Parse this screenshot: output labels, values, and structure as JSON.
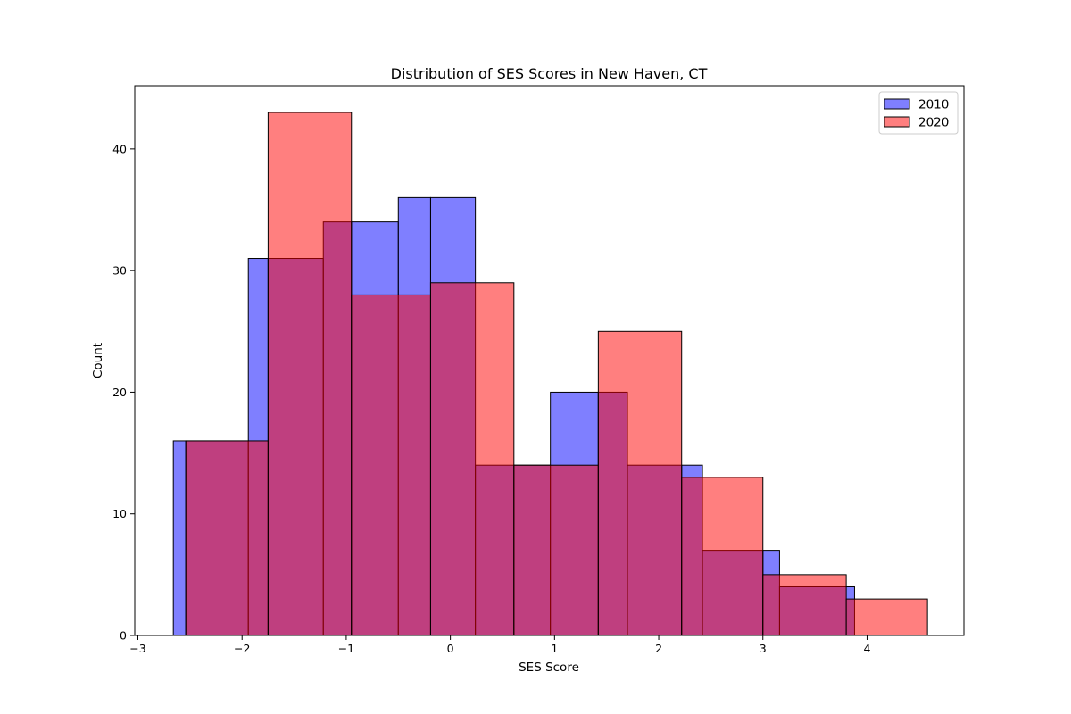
{
  "chart_data": {
    "type": "bar",
    "subtype": "overlapping-histogram",
    "title": "Distribution of SES Scores in New Haven, CT",
    "xlabel": "SES Score",
    "ylabel": "Count",
    "xlim": [
      -3.03,
      4.93
    ],
    "ylim": [
      0,
      45.2
    ],
    "xticks": [
      -3,
      -2,
      -1,
      0,
      1,
      2,
      3,
      4
    ],
    "xtick_labels": [
      "−3",
      "−2",
      "−1",
      "0",
      "1",
      "2",
      "3",
      "4"
    ],
    "yticks": [
      0,
      10,
      20,
      30,
      40
    ],
    "ytick_labels": [
      "0",
      "10",
      "20",
      "30",
      "40"
    ],
    "grid": false,
    "legend": "top-right",
    "series": [
      {
        "name": "2010",
        "color": "#0000ff",
        "opacity": 0.5,
        "bin_edges": [
          -2.66,
          -1.94,
          -1.22,
          -0.5,
          0.24,
          0.96,
          1.7,
          2.42,
          3.16,
          3.88
        ],
        "split_edges": [
          -2.66,
          -2.54,
          -1.94,
          -1.75,
          -1.22,
          -0.95,
          -0.5,
          -0.19,
          0.24,
          0.61,
          0.96,
          1.42,
          1.7,
          2.22,
          2.42,
          3.0,
          3.16,
          3.88
        ],
        "values": [
          16,
          31,
          34,
          36,
          14,
          20,
          14,
          7,
          4
        ]
      },
      {
        "name": "2020",
        "color": "#ff0000",
        "opacity": 0.5,
        "bin_edges": [
          -2.54,
          -1.75,
          -0.95,
          -0.19,
          0.61,
          1.42,
          2.22,
          3.0,
          3.8,
          4.58
        ],
        "values": [
          16,
          43,
          28,
          29,
          14,
          25,
          13,
          5,
          3
        ]
      }
    ]
  }
}
